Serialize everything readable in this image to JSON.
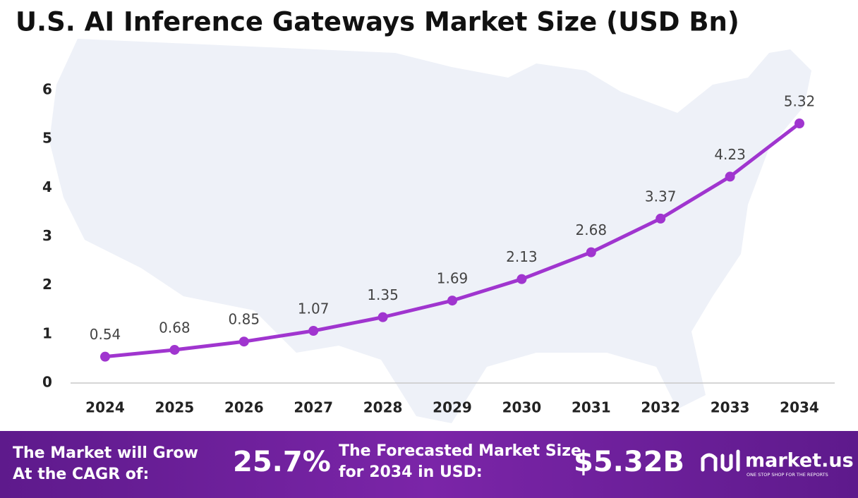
{
  "chart_data": {
    "type": "line",
    "title": "U.S. AI Inference Gateways Market Size (USD Bn)",
    "categories": [
      "2024",
      "2025",
      "2026",
      "2027",
      "2028",
      "2029",
      "2030",
      "2031",
      "2032",
      "2033",
      "2034"
    ],
    "values": [
      0.54,
      0.68,
      0.85,
      1.07,
      1.35,
      1.69,
      2.13,
      2.68,
      3.37,
      4.23,
      5.32
    ],
    "color": "#a035cf",
    "ylim": [
      0,
      6
    ],
    "yticks": [
      0,
      1,
      2,
      3,
      4,
      5,
      6
    ],
    "grid": false
  },
  "footer": {
    "cagr_text": "The Market will Grow At the CAGR of:",
    "cagr": "25.7%",
    "forecast_text": "The Forecasted Market Size for 2034 in USD:",
    "forecast": "$5.32B",
    "brand": "market.us",
    "tagline": "ONE STOP SHOP FOR THE REPORTS"
  }
}
